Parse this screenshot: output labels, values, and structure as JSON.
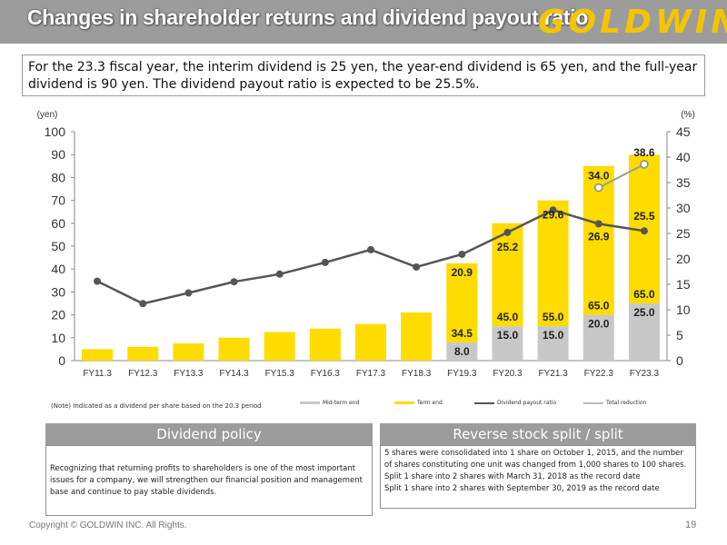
{
  "header": {
    "title": "Changes in shareholder returns and dividend payout ratio",
    "brand": "GOLDWIN"
  },
  "summary": "For the 23.3 fiscal year, the interim dividend is 25 yen, the year-end dividend is 65 yen, and the full-year dividend is 90 yen. The dividend payout ratio is expected to be 25.5%.",
  "note": "(Note) Indicated as a dividend per share based on the 20.3 period",
  "legend": {
    "mid_term": "Mid-term end",
    "term_end": "Term end",
    "payout": "Dividend payout ratio",
    "total_reduction": "Total reduction"
  },
  "colors": {
    "gold": "#ffdc00",
    "gray": "#c8c8c8",
    "line": "#555555",
    "header": "#9c9c9c"
  },
  "chart_data": {
    "type": "bar",
    "categories": [
      "FY11.3",
      "FY12.3",
      "FY13.3",
      "FY14.3",
      "FY15.3",
      "FY16.3",
      "FY17.3",
      "FY18.3",
      "FY19.3",
      "FY20.3",
      "FY21.3",
      "FY22.3",
      "FY23.3"
    ],
    "y_left": {
      "label": "(yen)",
      "range": [
        0,
        100
      ],
      "ticks": [
        0,
        10,
        20,
        30,
        40,
        50,
        60,
        70,
        80,
        90,
        100
      ]
    },
    "y_right": {
      "label": "(%)",
      "range": [
        0,
        45
      ],
      "ticks": [
        0,
        5,
        10,
        15,
        20,
        25,
        30,
        35,
        40,
        45
      ]
    },
    "series": [
      {
        "name": "Mid-term end",
        "values": [
          null,
          null,
          null,
          null,
          null,
          null,
          null,
          null,
          8.0,
          15.0,
          15.0,
          20.0,
          25.0
        ],
        "labels": [
          null,
          null,
          null,
          null,
          null,
          null,
          null,
          null,
          "8.0",
          "15.0",
          "15.0",
          "20.0",
          "25.0"
        ]
      },
      {
        "name": "Term end",
        "values": [
          5,
          6,
          7.5,
          10,
          12.5,
          14,
          16,
          21,
          34.5,
          45.0,
          55.0,
          65.0,
          65.0
        ],
        "labels": [
          null,
          null,
          null,
          null,
          null,
          null,
          null,
          null,
          "34.5",
          "45.0",
          "55.0",
          "65.0",
          "65.0"
        ]
      },
      {
        "name": "Dividend payout ratio",
        "values": [
          15.6,
          11.2,
          13.3,
          15.5,
          17.0,
          19.3,
          21.8,
          18.4,
          20.9,
          25.2,
          29.6,
          26.9,
          25.5
        ],
        "labels": [
          null,
          null,
          null,
          null,
          null,
          null,
          null,
          null,
          "20.9",
          "25.2",
          "29.6",
          "26.9",
          "25.5"
        ]
      },
      {
        "name": "Total reduction",
        "x": [
          "FY22.3",
          "FY23.3"
        ],
        "values": [
          34.0,
          38.6
        ],
        "labels": [
          "34.0",
          "38.6"
        ]
      }
    ]
  },
  "policy": {
    "title": "Dividend policy",
    "text": "Recognizing that returning profits to shareholders is one of the most important issues for a company, we will strengthen our financial position and management base and continue to pay stable dividends."
  },
  "split": {
    "title": "Reverse stock split / split",
    "lines": [
      "5 shares were consolidated into 1 share on October 1, 2015, and the number of shares constituting one unit was changed from 1,000 shares to 100 shares.",
      "Split 1 share into 2 shares with March 31, 2018 as the record date",
      "Split 1 share into 2 shares with September 30, 2019 as the record date"
    ]
  },
  "footer": {
    "copyright": "Copyright © GOLDWIN INC. All Rights.",
    "page": "19"
  }
}
